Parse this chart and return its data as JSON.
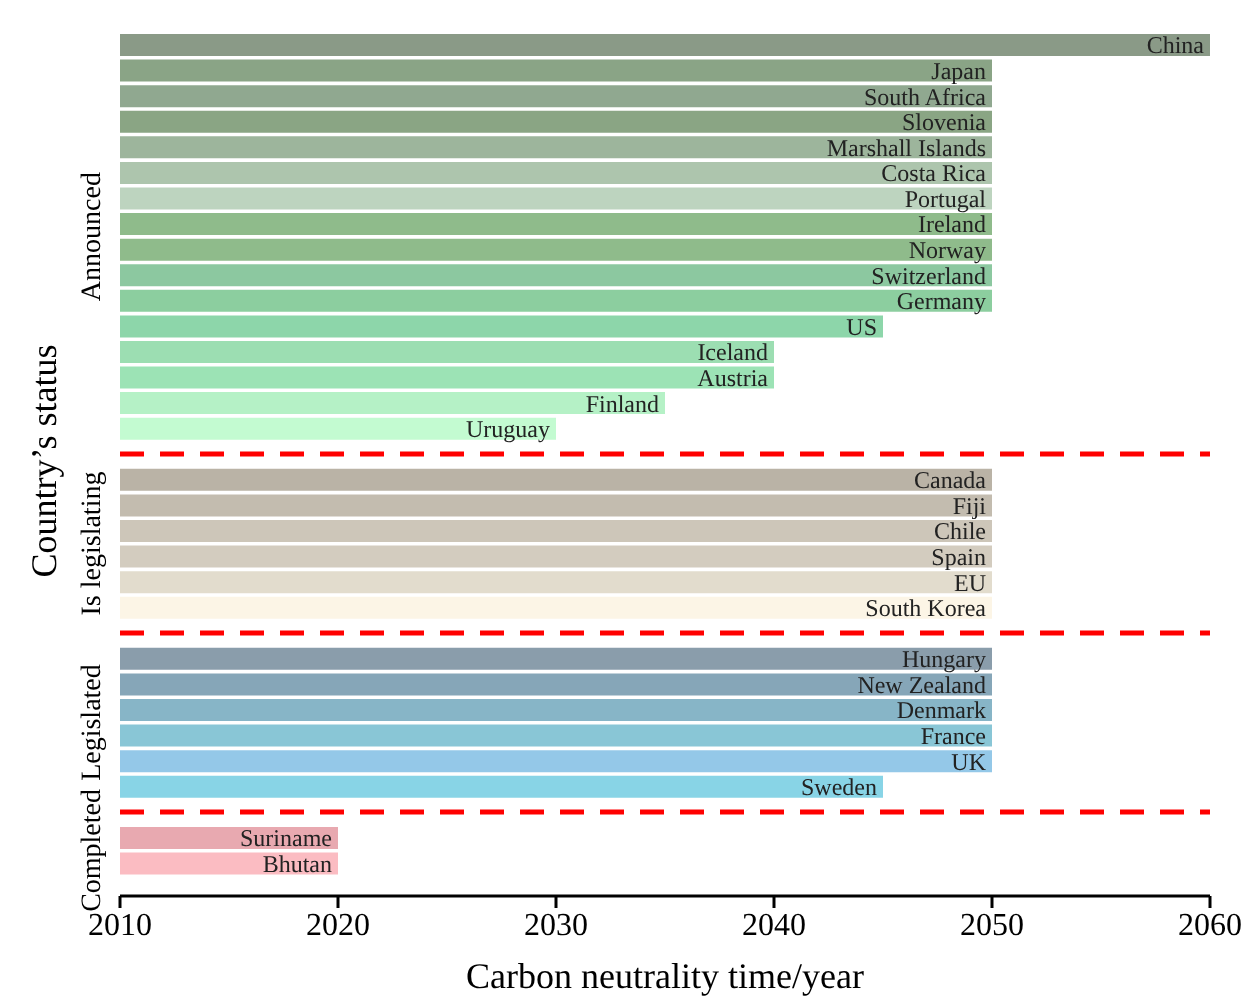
{
  "chart_data": {
    "type": "bar",
    "orientation": "horizontal",
    "xlabel": "Carbon neutrality time/year",
    "ylabel": "Country’s status",
    "categories": [
      "China",
      "Japan",
      "South Africa",
      "Slovenia",
      "Marshall Islands",
      "Costa Rica",
      "Portugal",
      "Ireland",
      "Norway",
      "Switzerland",
      "Germany",
      "US",
      "Iceland",
      "Austria",
      "Finland",
      "Uruguay",
      null,
      "Canada",
      "Fiji",
      "Chile",
      "Spain",
      "EU",
      "South Korea",
      null,
      "Hungary",
      "New Zealand",
      "Denmark",
      "France",
      "UK",
      "Sweden",
      null,
      "Suriname",
      "Bhutan"
    ],
    "values": [
      2060,
      2050,
      2050,
      2050,
      2050,
      2050,
      2050,
      2050,
      2050,
      2050,
      2050,
      2045,
      2040,
      2040,
      2035,
      2030,
      null,
      2050,
      2050,
      2050,
      2050,
      2050,
      2050,
      null,
      2050,
      2050,
      2050,
      2050,
      2050,
      2045,
      null,
      2020,
      2020
    ],
    "colors": [
      "#8a9a87",
      "#8aa486",
      "#90a890",
      "#8aa584",
      "#9db59c",
      "#adc5ad",
      "#bdd4bf",
      "#8fbb8b",
      "#8fbb8b",
      "#8cc8a0",
      "#8cce9f",
      "#8dd6aa",
      "#9cdeb2",
      "#9ce3b5",
      "#b5f1c6",
      "#c3fbd1",
      null,
      "#bab3a6",
      "#c3bcaf",
      "#cdc6b9",
      "#d3ccbf",
      "#e2dccd",
      "#fcf5e6",
      null,
      "#8a9dab",
      "#86a6b8",
      "#87b5c7",
      "#89c6d6",
      "#94c8e8",
      "#88d4e6",
      null,
      "#e8a9b0",
      "#fbbcc2"
    ],
    "xlim": [
      2010,
      2060
    ],
    "xticks": [
      2010,
      2020,
      2030,
      2040,
      2050,
      2060
    ],
    "annotations": [
      "Announced",
      "Is legislating",
      "Legislated",
      "Completed"
    ]
  }
}
